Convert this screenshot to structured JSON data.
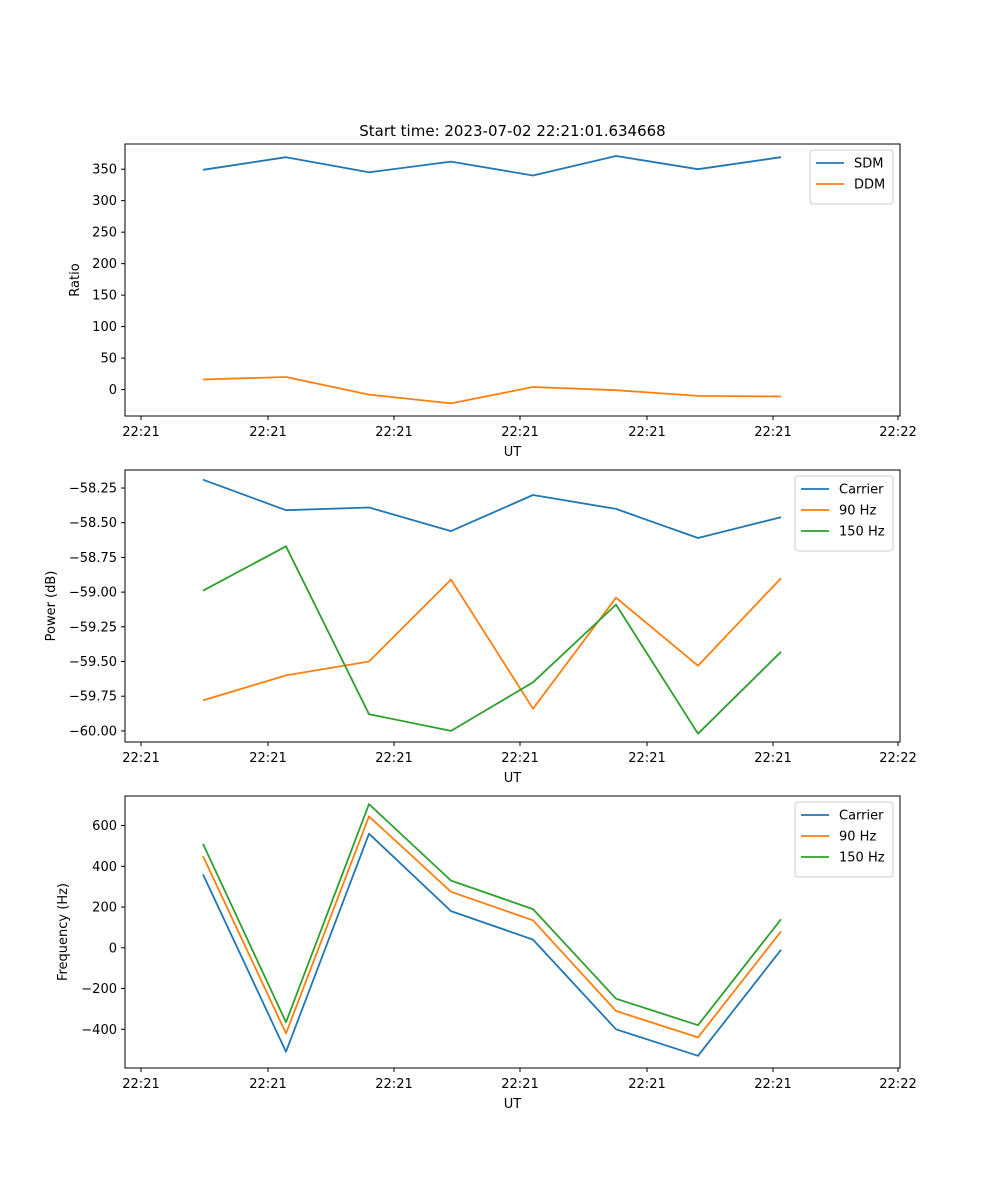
{
  "chart_data": [
    {
      "type": "line",
      "title": "Start time: 2023-07-02 22:21:01.634668",
      "xlabel": "UT",
      "ylabel": "Ratio",
      "xtick_labels": [
        "22:21",
        "22:21",
        "22:21",
        "22:21",
        "22:21",
        "22:21",
        "22:22"
      ],
      "yticks": [
        0,
        50,
        100,
        150,
        200,
        250,
        300,
        350
      ],
      "ytick_labels": [
        "0",
        "50",
        "100",
        "150",
        "200",
        "250",
        "300",
        "350"
      ],
      "ylim": [
        -42,
        390
      ],
      "x": [
        1,
        2,
        3,
        4,
        5,
        6,
        7,
        8
      ],
      "legend_position": "top-right",
      "series": [
        {
          "name": "SDM",
          "color": "#1f77b4",
          "values": [
            349,
            369,
            345,
            362,
            340,
            371,
            350,
            369
          ]
        },
        {
          "name": "DDM",
          "color": "#ff7f0e",
          "values": [
            16,
            20,
            -8,
            -22,
            4,
            -1,
            -10,
            -11
          ]
        }
      ]
    },
    {
      "type": "line",
      "title": "",
      "xlabel": "UT",
      "ylabel": "Power (dB)",
      "xtick_labels": [
        "22:21",
        "22:21",
        "22:21",
        "22:21",
        "22:21",
        "22:21",
        "22:22"
      ],
      "yticks": [
        -58.25,
        -58.5,
        -58.75,
        -59.0,
        -59.25,
        -59.5,
        -59.75,
        -60.0
      ],
      "ytick_labels": [
        "−58.25",
        "−58.50",
        "−58.75",
        "−59.00",
        "−59.25",
        "−59.50",
        "−59.75",
        "−60.00"
      ],
      "ylim": [
        -60.08,
        -58.12
      ],
      "x": [
        1,
        2,
        3,
        4,
        5,
        6,
        7,
        8
      ],
      "legend_position": "top-right",
      "series": [
        {
          "name": "Carrier",
          "color": "#1f77b4",
          "values": [
            -58.19,
            -58.41,
            -58.39,
            -58.56,
            -58.3,
            -58.4,
            -58.61,
            -58.46
          ]
        },
        {
          "name": "90 Hz",
          "color": "#ff7f0e",
          "values": [
            -59.78,
            -59.6,
            -59.5,
            -58.91,
            -59.84,
            -59.04,
            -59.53,
            -58.9
          ]
        },
        {
          "name": "150 Hz",
          "color": "#2ca02c",
          "values": [
            -58.99,
            -58.67,
            -59.88,
            -60.0,
            -59.65,
            -59.09,
            -60.02,
            -59.43
          ]
        }
      ]
    },
    {
      "type": "line",
      "title": "",
      "xlabel": "UT",
      "ylabel": "Frequency (Hz)",
      "xtick_labels": [
        "22:21",
        "22:21",
        "22:21",
        "22:21",
        "22:21",
        "22:21",
        "22:22"
      ],
      "yticks": [
        -400,
        -200,
        0,
        200,
        400,
        600
      ],
      "ytick_labels": [
        "−400",
        "−200",
        "0",
        "200",
        "400",
        "600"
      ],
      "ylim": [
        -590,
        745
      ],
      "x": [
        1,
        2,
        3,
        4,
        5,
        6,
        7,
        8
      ],
      "legend_position": "top-right",
      "series": [
        {
          "name": "Carrier",
          "color": "#1f77b4",
          "values": [
            360,
            -510,
            560,
            180,
            40,
            -400,
            -530,
            -10
          ]
        },
        {
          "name": "90 Hz",
          "color": "#ff7f0e",
          "values": [
            450,
            -420,
            645,
            275,
            135,
            -310,
            -440,
            80
          ]
        },
        {
          "name": "150 Hz",
          "color": "#2ca02c",
          "values": [
            510,
            -365,
            705,
            330,
            190,
            -250,
            -380,
            140
          ]
        }
      ]
    }
  ]
}
